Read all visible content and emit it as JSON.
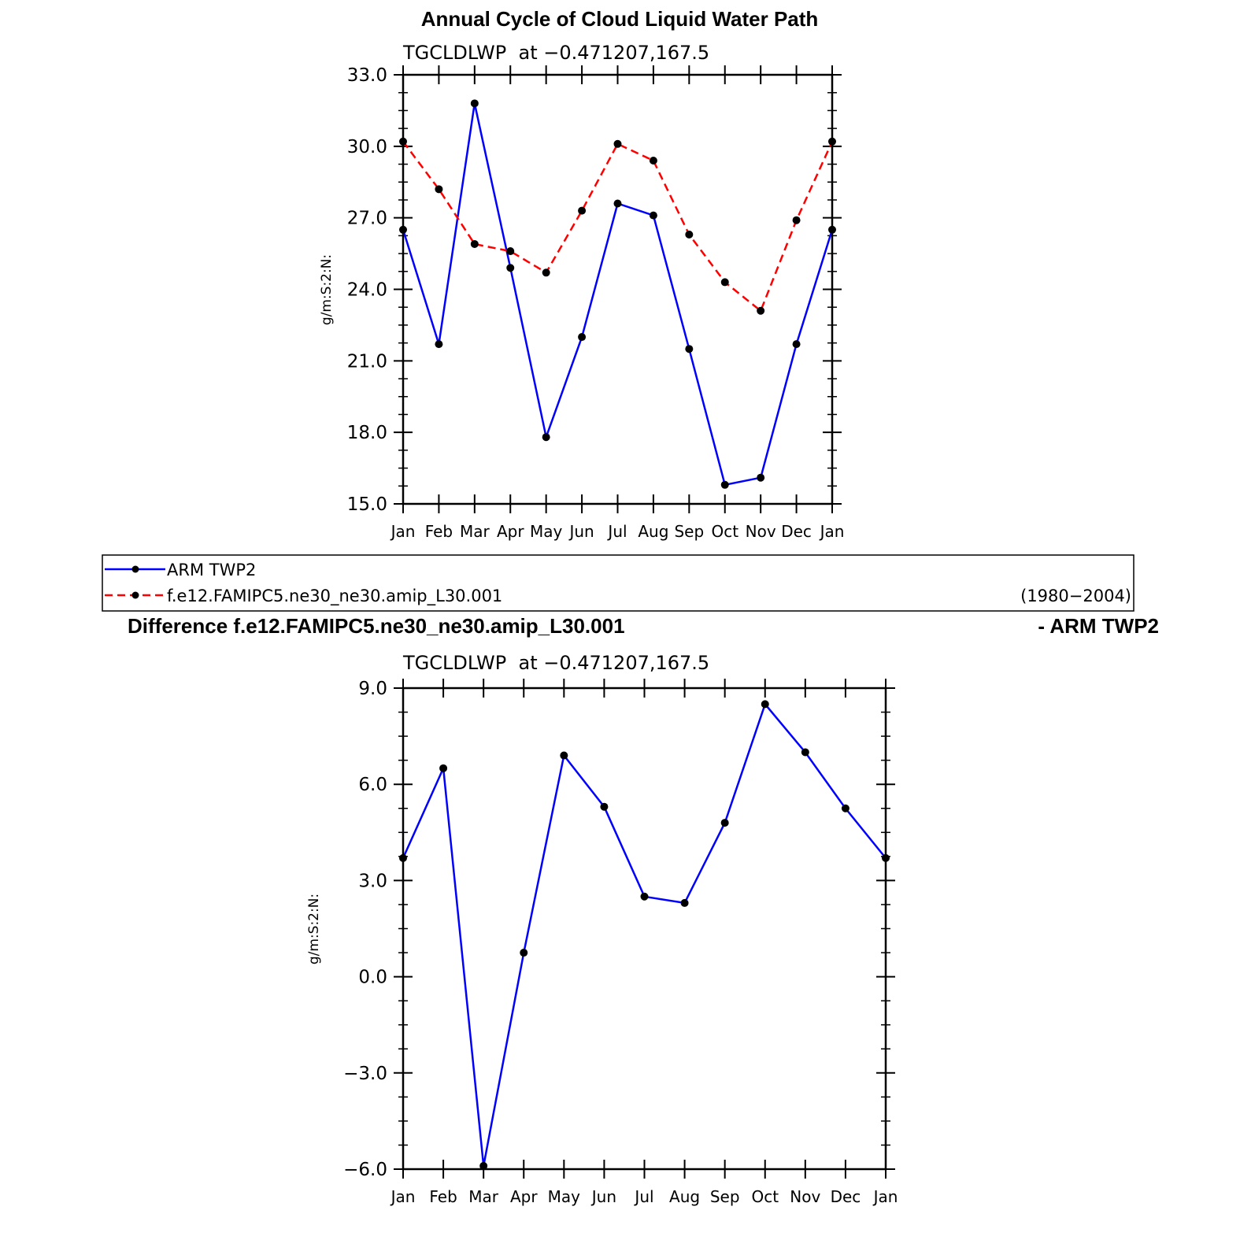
{
  "main_title": "Annual Cycle of Cloud Liquid Water Path",
  "legend": {
    "entries": [
      "ARM TWP2",
      "f.e12.FAMIPC5.ne30_ne30.amip_L30.001"
    ],
    "years": "(1980−2004)"
  },
  "difference_title": {
    "left": "Difference f.e12.FAMIPC5.ne30_ne30.amip_L30.001",
    "right": "- ARM TWP2"
  },
  "chart_data": [
    {
      "type": "line",
      "title": "TGCLDLWP  at −0.471207,167.5",
      "ylabel": "g/m:S:2:N:",
      "categories": [
        "Jan",
        "Feb",
        "Mar",
        "Apr",
        "May",
        "Jun",
        "Jul",
        "Aug",
        "Sep",
        "Oct",
        "Nov",
        "Dec",
        "Jan"
      ],
      "ylim": [
        15.0,
        33.0
      ],
      "yticks": [
        "15.0",
        "18.0",
        "21.0",
        "24.0",
        "27.0",
        "30.0",
        "33.0"
      ],
      "series": [
        {
          "name": "ARM TWP2",
          "color": "#0000ff",
          "dash": false,
          "values": [
            26.5,
            21.7,
            31.8,
            24.9,
            17.8,
            22.0,
            27.6,
            27.1,
            21.5,
            15.8,
            16.1,
            21.7,
            26.5
          ]
        },
        {
          "name": "f.e12.FAMIPC5.ne30_ne30.amip_L30.001",
          "color": "#ff0000",
          "dash": true,
          "values": [
            30.2,
            28.2,
            25.9,
            25.6,
            24.7,
            27.3,
            30.1,
            29.4,
            26.3,
            24.3,
            23.1,
            26.9,
            30.2
          ]
        }
      ]
    },
    {
      "type": "line",
      "title": "TGCLDLWP  at −0.471207,167.5",
      "ylabel": "g/m:S:2:N:",
      "categories": [
        "Jan",
        "Feb",
        "Mar",
        "Apr",
        "May",
        "Jun",
        "Jul",
        "Aug",
        "Sep",
        "Oct",
        "Nov",
        "Dec",
        "Jan"
      ],
      "ylim": [
        -6.0,
        9.0
      ],
      "yticks": [
        "−6.0",
        "−3.0",
        "0.0",
        "3.0",
        "6.0",
        "9.0"
      ],
      "series": [
        {
          "color": "#0000ff",
          "dash": false,
          "values": [
            3.7,
            6.5,
            -5.9,
            0.75,
            6.9,
            5.3,
            2.5,
            2.3,
            4.8,
            8.5,
            7.0,
            5.25,
            3.7
          ]
        }
      ]
    }
  ]
}
